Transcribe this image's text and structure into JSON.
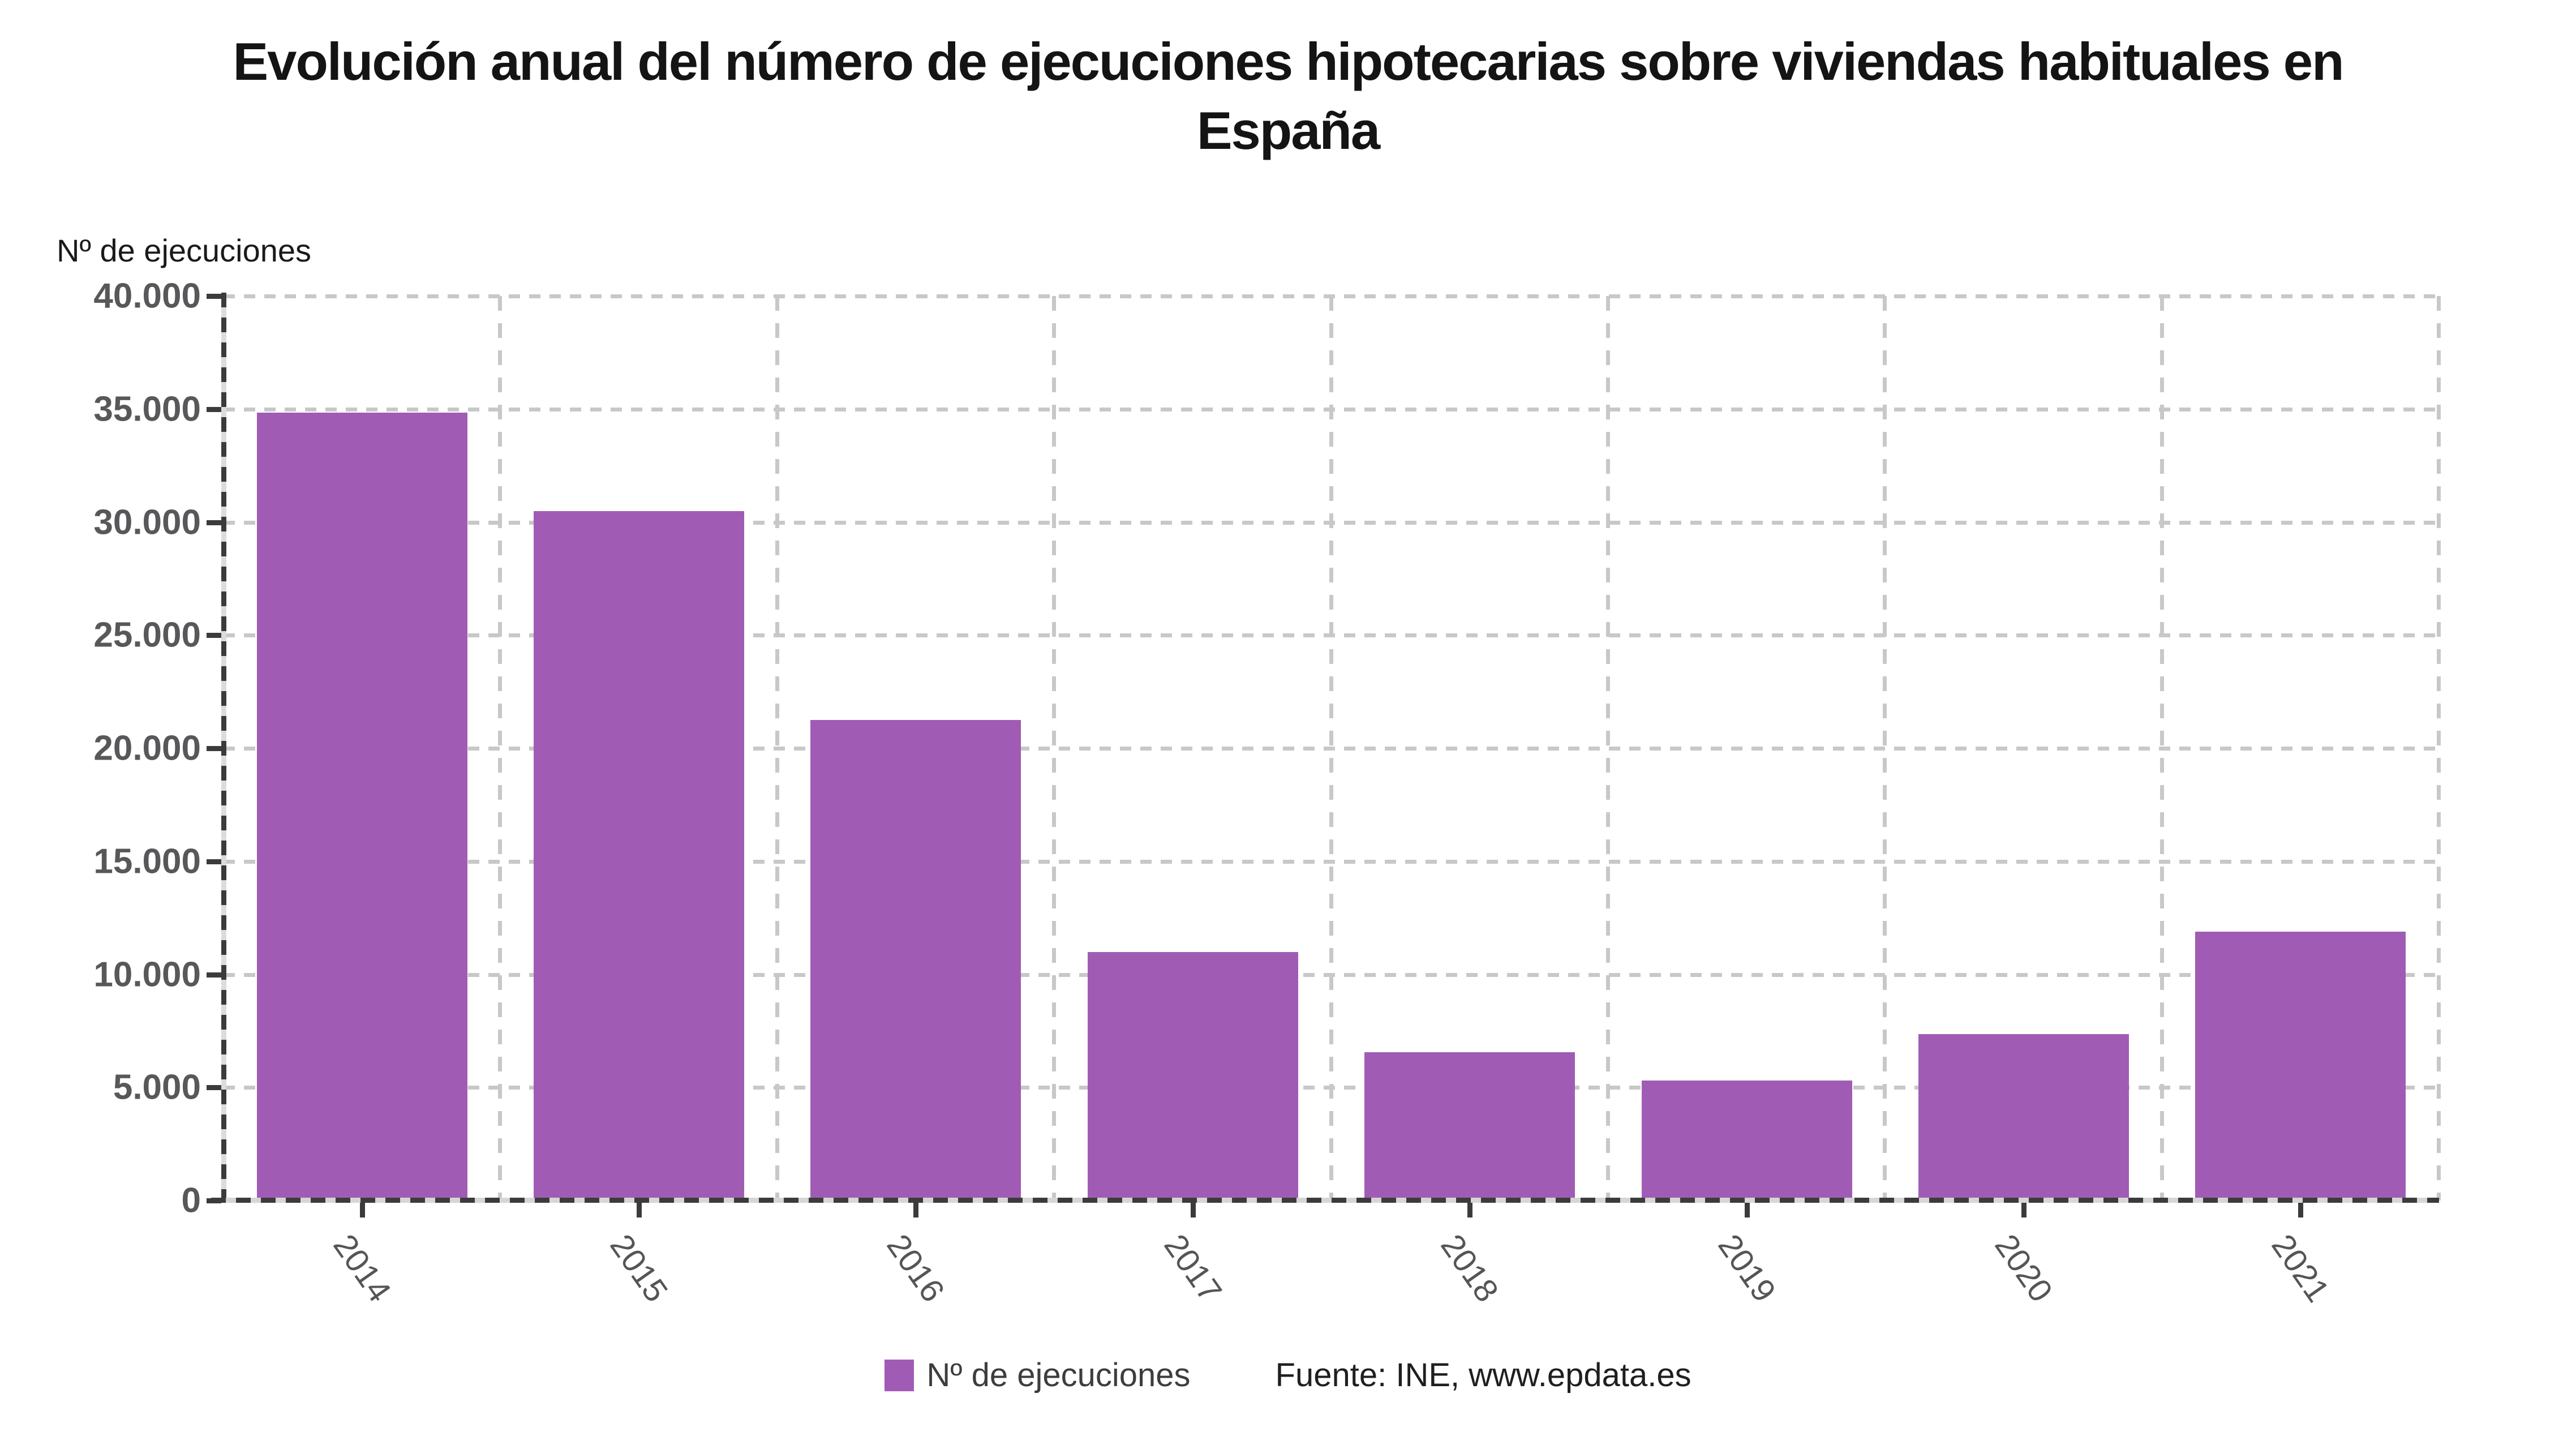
{
  "title": {
    "line1": "Evolución anual del número de ejecuciones hipotecarias sobre viviendas habituales en",
    "line2": "España"
  },
  "axis_title": "Nº de ejecuciones",
  "legend": {
    "label": "Nº de ejecuciones",
    "source": "Fuente: INE, www.epdata.es"
  },
  "colors": {
    "bar": "#a05cb4",
    "grid": "#c8c8c8",
    "axis": "#3b3b3b",
    "tick_label": "#58585a"
  },
  "chart_data": {
    "type": "bar",
    "title": "Evolución anual del número de ejecuciones hipotecarias sobre viviendas habituales en España",
    "categories": [
      "2014",
      "2015",
      "2016",
      "2017",
      "2018",
      "2019",
      "2020",
      "2021"
    ],
    "values": [
      34850,
      30500,
      21250,
      11000,
      6550,
      5300,
      7350,
      11900
    ],
    "series_name": "Nº de ejecuciones",
    "xlabel": "",
    "ylabel": "Nº de ejecuciones",
    "ylim": [
      0,
      40000
    ],
    "ytick_step": 5000,
    "ytick_labels": [
      "40.000",
      "35.000",
      "30.000",
      "25.000",
      "20.000",
      "15.000",
      "10.000",
      "5.000",
      "0"
    ],
    "grid": "dashed",
    "legend_position": "bottom",
    "source": "Fuente: INE, www.epdata.es"
  }
}
